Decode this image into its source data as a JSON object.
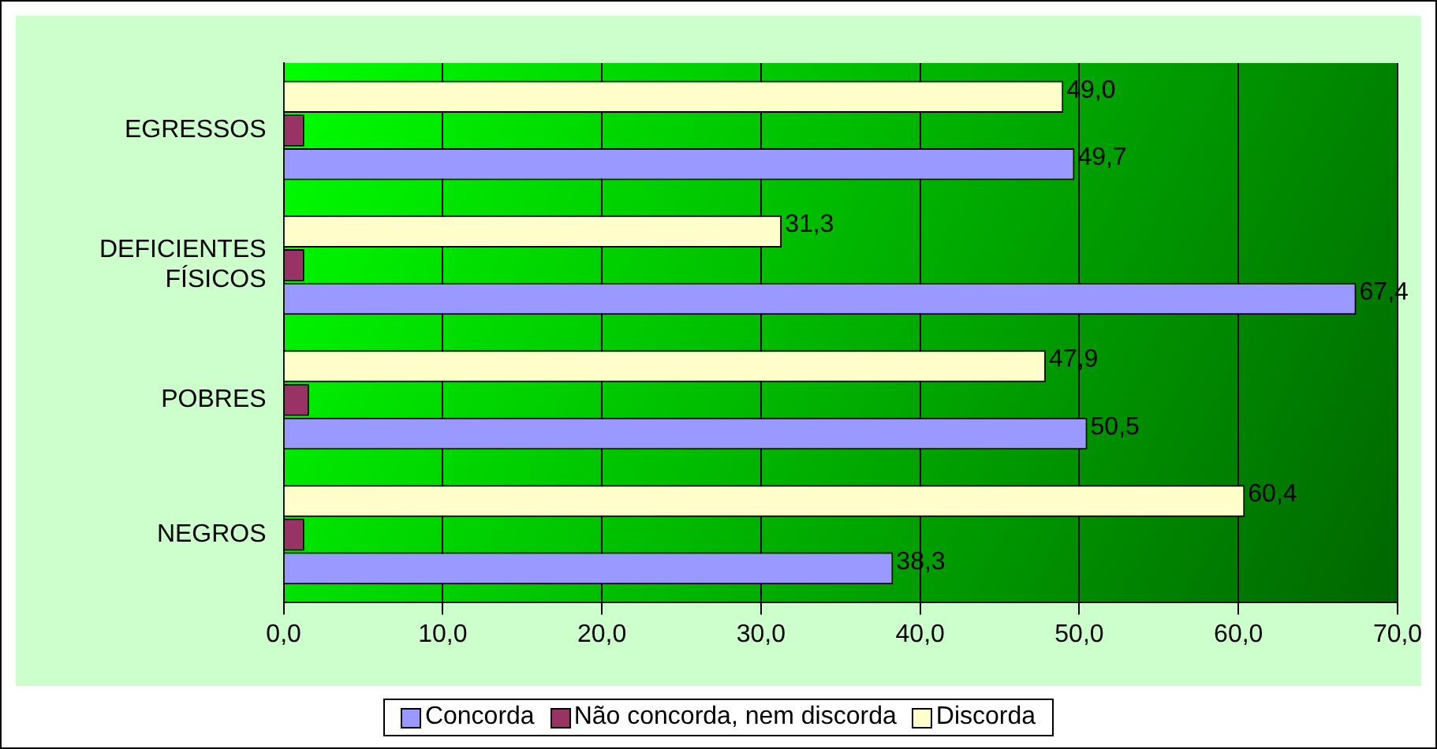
{
  "chart_data": {
    "type": "bar",
    "orientation": "horizontal",
    "categories": [
      "EGRESSOS",
      "DEFICIENTES FÍSICOS",
      "POBRES",
      "NEGROS"
    ],
    "series": [
      {
        "name": "Concorda",
        "color": "#9999ff",
        "values": [
          49.7,
          67.4,
          50.5,
          38.3
        ],
        "value_labels": [
          "49,7",
          "67,4",
          "50,5",
          "38,3"
        ]
      },
      {
        "name": "Não concorda, nem discorda",
        "color": "#993366",
        "values": [
          1.3,
          1.3,
          1.6,
          1.3
        ]
      },
      {
        "name": "Discorda",
        "color": "#ffffcc",
        "values": [
          49.0,
          31.3,
          47.9,
          60.4
        ],
        "value_labels": [
          "49,0",
          "31,3",
          "47,9",
          "60,4"
        ]
      }
    ],
    "xlim": [
      0,
      70
    ],
    "xticks": [
      {
        "value": 0,
        "label": "0,0"
      },
      {
        "value": 10,
        "label": "10,0"
      },
      {
        "value": 20,
        "label": "20,0"
      },
      {
        "value": 30,
        "label": "30,0"
      },
      {
        "value": 40,
        "label": "40,0"
      },
      {
        "value": 50,
        "label": "50,0"
      },
      {
        "value": 60,
        "label": "60,0"
      },
      {
        "value": 70,
        "label": "70,0"
      }
    ],
    "grid": "x",
    "legend": "bottom"
  }
}
